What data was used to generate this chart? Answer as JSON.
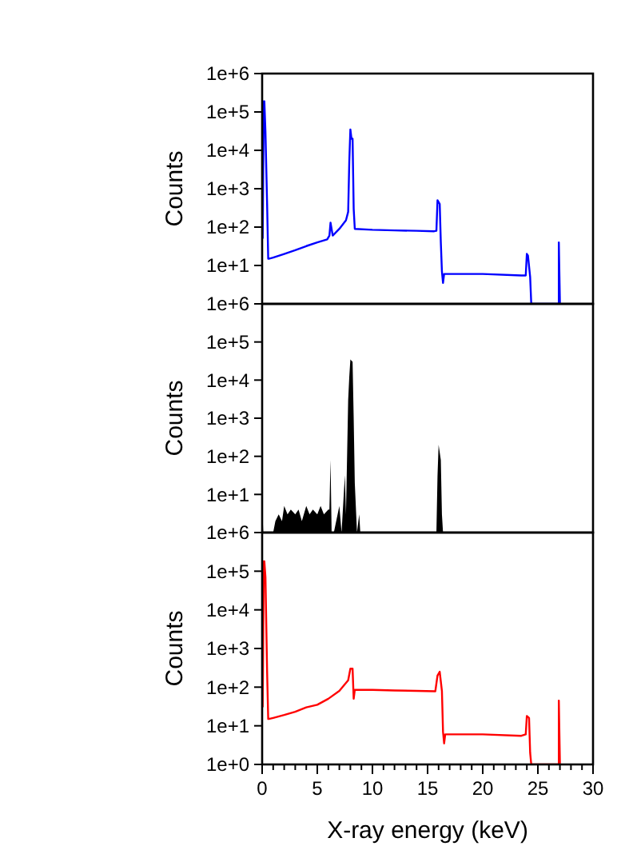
{
  "chart_data": [
    {
      "type": "line",
      "ylabel": "Counts",
      "log": "y",
      "xlim": [
        0,
        30
      ],
      "ylim": [
        1,
        1000000
      ],
      "tick_labels": "y",
      "yticks": [
        {
          "value": 1,
          "label": null
        },
        {
          "value": 10,
          "label": "1e+1"
        },
        {
          "value": 100,
          "label": "1e+2"
        },
        {
          "value": 1000,
          "label": "1e+3"
        },
        {
          "value": 10000,
          "label": "1e+4"
        },
        {
          "value": 100000,
          "label": "1e+5"
        },
        {
          "value": 1000000,
          "label": "1e+6"
        }
      ],
      "series": [
        {
          "color": "#0000ff",
          "x": [
            0.05,
            0.15,
            0.2,
            0.3,
            0.45,
            0.55,
            0.6,
            1,
            2,
            3,
            4,
            5,
            5.9,
            6.1,
            6.2,
            6.4,
            7,
            7.6,
            7.8,
            7.9,
            8,
            8.1,
            8.2,
            8.3,
            8.4,
            10,
            12,
            14,
            15.6,
            15.8,
            15.9,
            16.1,
            16.2,
            16.3,
            16.4,
            16.5,
            17,
            20,
            23.5,
            23.9,
            24,
            24.1,
            24.3,
            24.4,
            26.9,
            26.9,
            27.0
          ],
          "values": [
            50,
            190000,
            190000,
            30000,
            400,
            15,
            15,
            16,
            20,
            25,
            32,
            40,
            48,
            60,
            130,
            60,
            90,
            150,
            250,
            5000,
            35000,
            20000,
            20000,
            300,
            90,
            85,
            82,
            80,
            78,
            80,
            500,
            400,
            40,
            7,
            3.5,
            6,
            6,
            6,
            5.5,
            5.5,
            20,
            18,
            5,
            1,
            1,
            40,
            1
          ]
        }
      ]
    },
    {
      "type": "area",
      "ylabel": "Counts",
      "log": "y",
      "xlim": [
        0,
        30
      ],
      "ylim": [
        1,
        1000000
      ],
      "tick_labels": "y",
      "yticks": [
        {
          "value": 1,
          "label": null
        },
        {
          "value": 10,
          "label": "1e+1"
        },
        {
          "value": 100,
          "label": "1e+2"
        },
        {
          "value": 1000,
          "label": "1e+3"
        },
        {
          "value": 10000,
          "label": "1e+4"
        },
        {
          "value": 100000,
          "label": "1e+5"
        },
        {
          "value": 1000000,
          "label": "1e+6"
        }
      ],
      "series": [
        {
          "color": "#000000",
          "x": [
            0,
            0.1,
            0.2,
            1.0,
            1.2,
            1.5,
            1.8,
            2.0,
            2.3,
            2.6,
            3.0,
            3.3,
            3.6,
            4.0,
            4.3,
            4.6,
            5.0,
            5.3,
            5.6,
            6.0,
            6.1,
            6.2,
            6.3,
            6.5,
            7.0,
            7.2,
            7.5,
            7.6,
            7.8,
            7.9,
            8.0,
            8.2,
            8.3,
            8.4,
            8.6,
            8.8,
            8.9,
            9.0,
            15.8,
            15.9,
            16.0,
            16.2,
            16.3,
            16.4
          ],
          "values": [
            6,
            1,
            1,
            1,
            2,
            3,
            2,
            5,
            3,
            4,
            3,
            4,
            2,
            5,
            3,
            4,
            3,
            5,
            3,
            4,
            4,
            80,
            1,
            1,
            5,
            1,
            32,
            3,
            3000,
            12000,
            35000,
            30000,
            1000,
            20,
            1,
            3,
            1,
            1,
            1,
            30,
            200,
            80,
            3,
            1
          ]
        }
      ]
    },
    {
      "type": "line",
      "ylabel": "Counts",
      "xlabel": "X-ray energy (keV)",
      "log": "y",
      "xlim": [
        0,
        30
      ],
      "ylim": [
        1,
        1000000
      ],
      "xticks": [
        0,
        {
          "value": 1,
          "label": null
        },
        {
          "value": 2,
          "label": null
        },
        {
          "value": 3,
          "label": null
        },
        {
          "value": 4,
          "label": null
        },
        5,
        {
          "value": 6,
          "label": null
        },
        {
          "value": 7,
          "label": null
        },
        {
          "value": 8,
          "label": null
        },
        {
          "value": 9,
          "label": null
        },
        10,
        {
          "value": 11,
          "label": null
        },
        {
          "value": 12,
          "label": null
        },
        {
          "value": 13,
          "label": null
        },
        {
          "value": 14,
          "label": null
        },
        15,
        {
          "value": 16,
          "label": null
        },
        {
          "value": 17,
          "label": null
        },
        {
          "value": 18,
          "label": null
        },
        {
          "value": 19,
          "label": null
        },
        20,
        {
          "value": 21,
          "label": null
        },
        {
          "value": 22,
          "label": null
        },
        {
          "value": 23,
          "label": null
        },
        {
          "value": 24,
          "label": null
        },
        25,
        {
          "value": 26,
          "label": null
        },
        {
          "value": 27,
          "label": null
        },
        {
          "value": 28,
          "label": null
        },
        {
          "value": 29,
          "label": null
        },
        30
      ],
      "yticks": [
        {
          "value": 1,
          "label": "1e+0"
        },
        {
          "value": 10,
          "label": "1e+1"
        },
        {
          "value": 100,
          "label": "1e+2"
        },
        {
          "value": 1000,
          "label": "1e+3"
        },
        {
          "value": 10000,
          "label": "1e+4"
        },
        {
          "value": 100000,
          "label": "1e+5"
        },
        {
          "value": 1000000,
          "label": "1e+6"
        }
      ],
      "series": [
        {
          "color": "#ff0000",
          "x": [
            0.05,
            0.15,
            0.2,
            0.3,
            0.45,
            0.55,
            0.6,
            1,
            2,
            3,
            4,
            5,
            6,
            7,
            7.8,
            8,
            8.2,
            8.3,
            8.4,
            10,
            12,
            14,
            15.7,
            15.9,
            16.1,
            16.3,
            16.4,
            16.5,
            16.6,
            20,
            23.5,
            23.9,
            24,
            24.2,
            24.3,
            24.4,
            26.9,
            26.9,
            27.0
          ],
          "values": [
            30,
            180000,
            180000,
            70000,
            250,
            15,
            15,
            16,
            19,
            23,
            30,
            35,
            50,
            80,
            150,
            300,
            300,
            50,
            85,
            85,
            82,
            80,
            78,
            200,
            250,
            80,
            7,
            3.5,
            6,
            6,
            5.5,
            6,
            18,
            16,
            2,
            1,
            1,
            45,
            1
          ]
        }
      ]
    }
  ]
}
